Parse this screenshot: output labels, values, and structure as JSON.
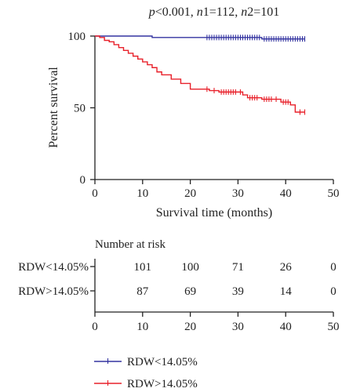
{
  "chart_data": {
    "type": "line",
    "subtype": "kaplan-meier",
    "title_parts": [
      {
        "text": "p",
        "italic": true
      },
      {
        "text": "<0.001, ",
        "italic": false
      },
      {
        "text": "n",
        "italic": true
      },
      {
        "text": "1=112, ",
        "italic": false
      },
      {
        "text": "n",
        "italic": true
      },
      {
        "text": "2=101",
        "italic": false
      }
    ],
    "xlabel": "Survival time (months)",
    "ylabel": "Percent survival",
    "xlim": [
      0,
      50
    ],
    "ylim": [
      0,
      100
    ],
    "xticks": [
      0,
      10,
      20,
      30,
      40,
      50
    ],
    "yticks": [
      0,
      50,
      100
    ],
    "grid": false,
    "legend_position": "bottom-left",
    "series": [
      {
        "name": "RDW<14.05%",
        "color": "#3333a0",
        "steps": [
          [
            0,
            100
          ],
          [
            12,
            100
          ],
          [
            12,
            99
          ],
          [
            35,
            99
          ],
          [
            35,
            98
          ],
          [
            44,
            98
          ]
        ],
        "censor_x": [
          23.5,
          24,
          24.5,
          25,
          25.5,
          26,
          26.5,
          27,
          27.5,
          28,
          28.5,
          29,
          29.5,
          30,
          30.5,
          31,
          31.5,
          32,
          32.5,
          33,
          33.5,
          34,
          34.5,
          35.5,
          36,
          36.5,
          37,
          37.5,
          38,
          38.5,
          39,
          39.5,
          40,
          40.5,
          41,
          41.5,
          42,
          42.5,
          43,
          43.5,
          44
        ]
      },
      {
        "name": "RDW>14.05%",
        "color": "#e8202a",
        "steps": [
          [
            0,
            100
          ],
          [
            1,
            100
          ],
          [
            1,
            99
          ],
          [
            2,
            99
          ],
          [
            2,
            97
          ],
          [
            3,
            97
          ],
          [
            3,
            96
          ],
          [
            4,
            96
          ],
          [
            4,
            94
          ],
          [
            5,
            94
          ],
          [
            5,
            92
          ],
          [
            6,
            92
          ],
          [
            6,
            90
          ],
          [
            7,
            90
          ],
          [
            7,
            88
          ],
          [
            8,
            88
          ],
          [
            8,
            86
          ],
          [
            9,
            86
          ],
          [
            9,
            84
          ],
          [
            10,
            84
          ],
          [
            10,
            82
          ],
          [
            11,
            82
          ],
          [
            11,
            80
          ],
          [
            12,
            80
          ],
          [
            12,
            78
          ],
          [
            13,
            78
          ],
          [
            13,
            75
          ],
          [
            14,
            75
          ],
          [
            14,
            73
          ],
          [
            16,
            73
          ],
          [
            16,
            70
          ],
          [
            18,
            70
          ],
          [
            18,
            67
          ],
          [
            20,
            67
          ],
          [
            20,
            63
          ],
          [
            24,
            63
          ],
          [
            24,
            62
          ],
          [
            26,
            62
          ],
          [
            26,
            61
          ],
          [
            31,
            61
          ],
          [
            31,
            59
          ],
          [
            32,
            59
          ],
          [
            32,
            57
          ],
          [
            35,
            57
          ],
          [
            35,
            56
          ],
          [
            39,
            56
          ],
          [
            39,
            54
          ],
          [
            41,
            54
          ],
          [
            41,
            52
          ],
          [
            42,
            52
          ],
          [
            42,
            47
          ],
          [
            44,
            47
          ]
        ],
        "censor_x": [
          23.5,
          25,
          26.5,
          27,
          27.5,
          28,
          28.5,
          29,
          29.5,
          30.5,
          32.5,
          33,
          33.5,
          34,
          35.5,
          36,
          36.5,
          37,
          38,
          39.5,
          40,
          40.5,
          43,
          44
        ]
      }
    ],
    "risk_table": {
      "title": "Number at risk",
      "time_points": [
        10,
        20,
        30,
        40,
        50
      ],
      "rows": [
        {
          "label": "RDW<14.05%",
          "values": [
            101,
            100,
            71,
            26,
            0
          ]
        },
        {
          "label": "RDW>14.05%",
          "values": [
            87,
            69,
            39,
            14,
            0
          ]
        }
      ],
      "axis_ticks": [
        0,
        10,
        20,
        30,
        40,
        50
      ]
    }
  }
}
